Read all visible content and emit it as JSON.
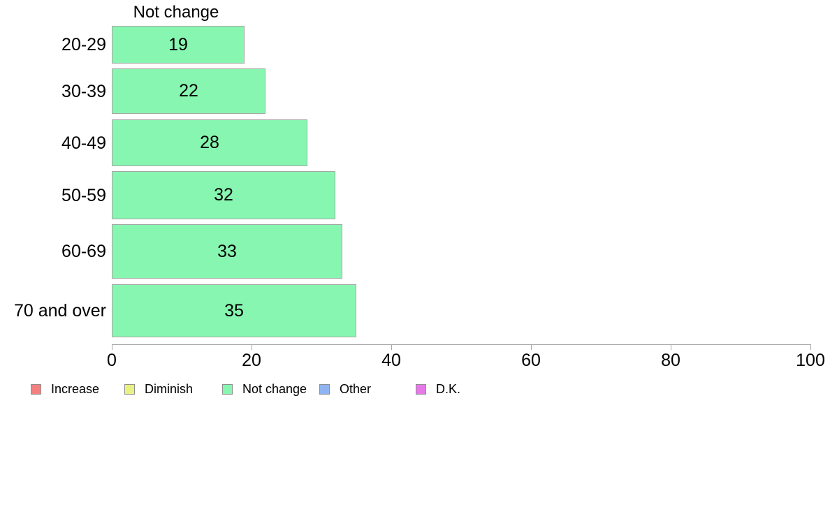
{
  "chart_data": {
    "type": "bar",
    "orientation": "horizontal",
    "title": "Not change",
    "categories": [
      "20-29",
      "30-39",
      "40-49",
      "50-59",
      "60-69",
      "70 and over"
    ],
    "values": [
      19,
      22,
      28,
      32,
      33,
      35
    ],
    "xlim": [
      0,
      100
    ],
    "x_ticks": [
      0,
      20,
      40,
      60,
      80,
      100
    ],
    "grid": "off",
    "bar_color": "#87f6b0",
    "bar_border_color": "#a6a6a6",
    "axis_color": "#a6a6a6",
    "legend_position": "bottom-left",
    "legend": [
      {
        "label": "Increase",
        "color": "#f58080"
      },
      {
        "label": "Diminish",
        "color": "#e8f280"
      },
      {
        "label": "Not change",
        "color": "#87f6b0"
      },
      {
        "label": "Other",
        "color": "#8fb4f0"
      },
      {
        "label": "D.K.",
        "color": "#e678ea"
      }
    ]
  }
}
